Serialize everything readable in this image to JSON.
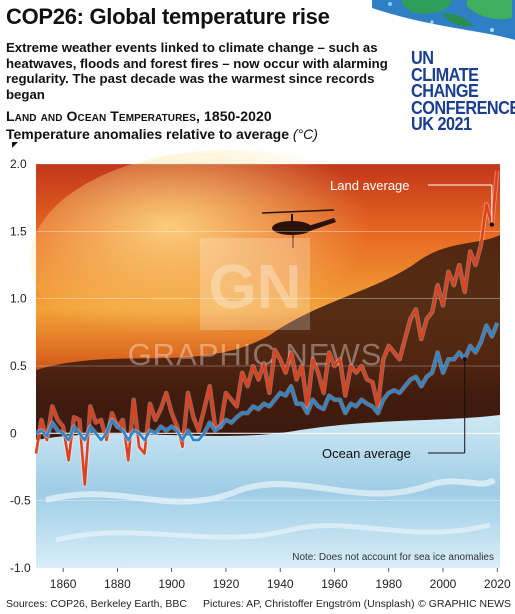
{
  "header": {
    "title": "COP26: Global temperature rise",
    "subtitle": "Extreme weather events linked to climate change – such as heatwaves, floods and forest fires – now occur with alarming regularity. The past decade was the warmest since records began"
  },
  "logo": {
    "lines": [
      "UN CLIMATE",
      "CHANGE",
      "CONFERENCE",
      "UK 2021"
    ],
    "color": "#1b3f8f"
  },
  "watermark": {
    "text": "GRAPHIC NEWS",
    "mark": "GN"
  },
  "footer": {
    "sources": "Sources: COP26, Berkeley Earth, BBC",
    "pictures": "Pictures: AP, Christoffer Engström (Unsplash)",
    "credit": "© GRAPHIC NEWS"
  },
  "chart_data": {
    "type": "line",
    "title": "Land and Ocean Temperatures, 1850-2020",
    "ylabel": "Temperature anomalies relative to average",
    "yunit": "(°C)",
    "xlim": [
      1850,
      2021
    ],
    "ylim": [
      -1.0,
      2.0
    ],
    "xticks": [
      "1860",
      "1880",
      "1900",
      "1920",
      "1940",
      "1960",
      "1980",
      "2000",
      "2020"
    ],
    "yticks": [
      "2.0",
      "1.5",
      "1.0",
      "0.5",
      "0",
      "-0.5",
      "-1.0"
    ],
    "annotations": {
      "land": "Land average",
      "ocean": "Ocean average",
      "note": "Note: Does not account for sea ice anomalies"
    },
    "series": [
      {
        "name": "Land average",
        "color": "#e2401c",
        "x": [
          1850,
          1852,
          1854,
          1856,
          1858,
          1860,
          1862,
          1864,
          1866,
          1868,
          1870,
          1872,
          1874,
          1876,
          1878,
          1880,
          1882,
          1884,
          1886,
          1888,
          1890,
          1892,
          1894,
          1896,
          1898,
          1900,
          1902,
          1904,
          1906,
          1908,
          1910,
          1912,
          1914,
          1916,
          1918,
          1920,
          1922,
          1924,
          1926,
          1928,
          1930,
          1932,
          1934,
          1936,
          1938,
          1940,
          1942,
          1944,
          1946,
          1948,
          1950,
          1952,
          1954,
          1956,
          1958,
          1960,
          1962,
          1964,
          1966,
          1968,
          1970,
          1972,
          1974,
          1976,
          1978,
          1980,
          1982,
          1984,
          1986,
          1988,
          1990,
          1992,
          1994,
          1996,
          1998,
          2000,
          2002,
          2004,
          2006,
          2008,
          2010,
          2012,
          2014,
          2016,
          2018,
          2020
        ],
        "values": [
          -0.15,
          0.1,
          -0.05,
          0.2,
          0.1,
          0.05,
          -0.2,
          0.12,
          0.1,
          -0.38,
          0.2,
          0.08,
          0.1,
          -0.05,
          0.15,
          0.05,
          0.1,
          -0.2,
          0.25,
          -0.1,
          -0.15,
          0.22,
          0.1,
          0.18,
          0.3,
          0.15,
          0.05,
          -0.1,
          0.3,
          0.12,
          0.02,
          0.18,
          0.35,
          0.05,
          0.05,
          0.3,
          0.25,
          0.2,
          0.45,
          0.35,
          0.5,
          0.4,
          0.52,
          0.3,
          0.62,
          0.55,
          0.45,
          0.6,
          0.4,
          0.5,
          0.2,
          0.55,
          0.45,
          0.3,
          0.6,
          0.5,
          0.55,
          0.28,
          0.5,
          0.45,
          0.5,
          0.4,
          0.38,
          0.2,
          0.55,
          0.65,
          0.6,
          0.55,
          0.7,
          0.85,
          0.92,
          0.7,
          0.85,
          0.9,
          1.1,
          0.95,
          1.2,
          1.1,
          1.25,
          1.05,
          1.35,
          1.25,
          1.4,
          1.7,
          1.55,
          1.95
        ]
      },
      {
        "name": "Ocean average",
        "color": "#2a88d1",
        "x": [
          1850,
          1852,
          1854,
          1856,
          1858,
          1860,
          1862,
          1864,
          1866,
          1868,
          1870,
          1872,
          1874,
          1876,
          1878,
          1880,
          1882,
          1884,
          1886,
          1888,
          1890,
          1892,
          1894,
          1896,
          1898,
          1900,
          1902,
          1904,
          1906,
          1908,
          1910,
          1912,
          1914,
          1916,
          1918,
          1920,
          1922,
          1924,
          1926,
          1928,
          1930,
          1932,
          1934,
          1936,
          1938,
          1940,
          1942,
          1944,
          1946,
          1948,
          1950,
          1952,
          1954,
          1956,
          1958,
          1960,
          1962,
          1964,
          1966,
          1968,
          1970,
          1972,
          1974,
          1976,
          1978,
          1980,
          1982,
          1984,
          1986,
          1988,
          1990,
          1992,
          1994,
          1996,
          1998,
          2000,
          2002,
          2004,
          2006,
          2008,
          2010,
          2012,
          2014,
          2016,
          2018,
          2020
        ],
        "values": [
          0.0,
          0.02,
          -0.02,
          0.08,
          0.02,
          0.0,
          -0.05,
          0.05,
          0.0,
          -0.05,
          0.05,
          0.0,
          -0.05,
          0.0,
          0.1,
          0.05,
          0.02,
          -0.05,
          0.02,
          0.0,
          -0.05,
          0.02,
          0.0,
          0.05,
          0.02,
          0.05,
          0.02,
          -0.05,
          0.02,
          -0.05,
          -0.05,
          0.0,
          0.08,
          0.02,
          0.05,
          0.1,
          0.08,
          0.12,
          0.15,
          0.15,
          0.2,
          0.18,
          0.22,
          0.2,
          0.25,
          0.3,
          0.28,
          0.35,
          0.22,
          0.22,
          0.15,
          0.25,
          0.2,
          0.18,
          0.28,
          0.25,
          0.25,
          0.15,
          0.22,
          0.2,
          0.25,
          0.22,
          0.2,
          0.15,
          0.25,
          0.3,
          0.32,
          0.3,
          0.35,
          0.4,
          0.42,
          0.35,
          0.42,
          0.45,
          0.6,
          0.45,
          0.55,
          0.55,
          0.6,
          0.55,
          0.65,
          0.6,
          0.68,
          0.8,
          0.72,
          0.82
        ]
      }
    ]
  }
}
